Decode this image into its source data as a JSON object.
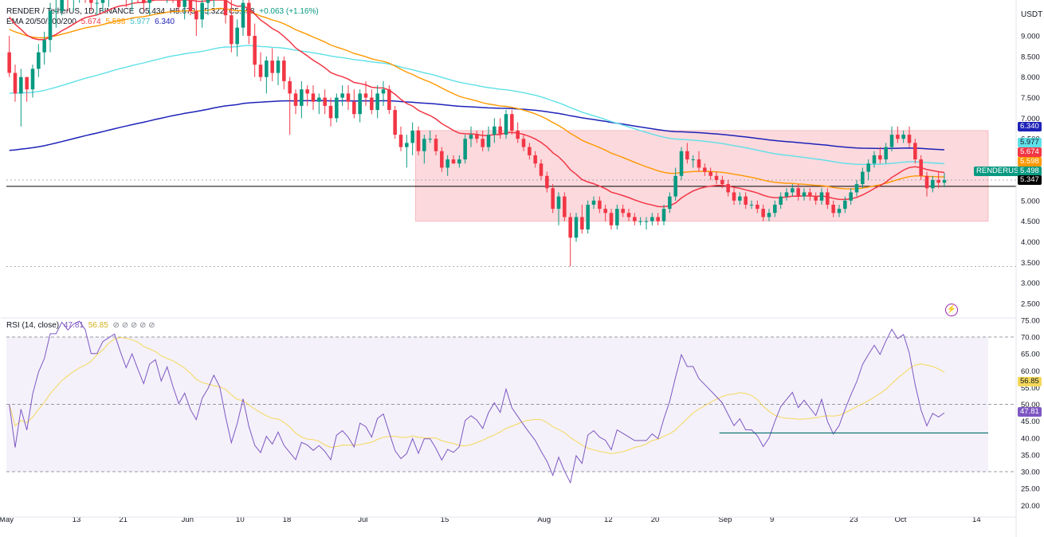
{
  "header": {
    "symbol": "RENDER / TetherUS, 1D, BINANCE",
    "open": "O5.434",
    "high": "H5.673",
    "low": "L5.322",
    "close": "C5.498",
    "change": "+0.063 (+1.16%)",
    "ema_label": "EMA 20/50/100/200",
    "ema_values": [
      "5.674",
      "5.598",
      "5.977",
      "6.340"
    ],
    "rsi_label": "RSI (14, close)",
    "rsi_values": [
      "47.81",
      "56.85"
    ],
    "currency": "USDT",
    "symbol_tag": "RENDERUSDT"
  },
  "colors": {
    "up": "#089981",
    "down": "#f23645",
    "ema20": "#f23645",
    "ema50": "#ff9800",
    "ema100": "#5fe0e8",
    "ema200": "#1e22b8",
    "rsi": "#7e57c2",
    "rsi_ma": "#f5d85a",
    "zone": "#f9c6cc",
    "support": "#000000",
    "rsi_support": "#006d6d"
  },
  "chart_data": [
    {
      "type": "candlestick",
      "title": "RENDER / TetherUS, 1D, BINANCE",
      "ylabel": "USDT",
      "ylim": [
        2.25,
        10.0
      ],
      "y_ticks": [
        2.5,
        3.0,
        3.5,
        4.0,
        4.5,
        5.0,
        5.5,
        6.0,
        6.5,
        7.0,
        7.5,
        8.0,
        8.5,
        9.0
      ],
      "x_ticks": [
        "May",
        "13",
        "21",
        "Jun",
        "10",
        "18",
        "Jul",
        "15",
        "Aug",
        "12",
        "20",
        "Sep",
        "9",
        "23",
        "Oct",
        "14"
      ],
      "x_tick_days": [
        0,
        12,
        20,
        31,
        40,
        48,
        61,
        75,
        92,
        103,
        111,
        123,
        131,
        145,
        153,
        166
      ],
      "start_date": "2024-05-01",
      "candles": [
        [
          8.6,
          9.0,
          8.0,
          8.1
        ],
        [
          8.1,
          8.3,
          7.4,
          7.6
        ],
        [
          7.6,
          8.2,
          6.8,
          8.0
        ],
        [
          8.0,
          8.0,
          7.4,
          7.7
        ],
        [
          7.7,
          8.3,
          7.5,
          8.2
        ],
        [
          8.2,
          8.8,
          8.0,
          8.6
        ],
        [
          8.6,
          9.1,
          8.3,
          8.9
        ],
        [
          8.9,
          9.8,
          8.6,
          9.6
        ],
        [
          9.6,
          10.0,
          9.2,
          9.6
        ],
        [
          9.6,
          10.0,
          9.5,
          10.0
        ],
        [
          10.0,
          10.2,
          9.6,
          9.9
        ],
        [
          9.9,
          10.3,
          9.6,
          10.1
        ],
        [
          10.1,
          10.4,
          9.8,
          10.2
        ],
        [
          10.2,
          10.4,
          9.8,
          10.1
        ],
        [
          10.1,
          10.5,
          9.6,
          9.8
        ],
        [
          9.8,
          10.2,
          9.5,
          9.8
        ],
        [
          9.8,
          10.3,
          9.6,
          10.1
        ],
        [
          10.1,
          10.4,
          9.7,
          10.2
        ],
        [
          10.2,
          10.5,
          9.9,
          10.3
        ],
        [
          10.3,
          10.6,
          9.9,
          10.1
        ],
        [
          10.1,
          10.4,
          9.7,
          9.9
        ],
        [
          9.9,
          10.3,
          9.6,
          10.2
        ],
        [
          10.2,
          10.4,
          9.8,
          10.0
        ],
        [
          10.0,
          10.3,
          9.6,
          9.8
        ],
        [
          9.8,
          10.4,
          9.5,
          10.2
        ],
        [
          10.2,
          10.6,
          9.9,
          10.3
        ],
        [
          10.3,
          10.6,
          9.9,
          10.0
        ],
        [
          10.0,
          10.5,
          9.8,
          10.3
        ],
        [
          10.3,
          10.6,
          9.8,
          10.0
        ],
        [
          10.0,
          10.4,
          9.6,
          9.7
        ],
        [
          9.7,
          10.2,
          9.4,
          9.9
        ],
        [
          9.9,
          10.1,
          9.5,
          9.6
        ],
        [
          9.6,
          10.1,
          9.0,
          9.4
        ],
        [
          9.4,
          10.0,
          9.2,
          9.8
        ],
        [
          9.8,
          10.3,
          9.5,
          10.0
        ],
        [
          10.0,
          10.5,
          9.7,
          10.3
        ],
        [
          10.3,
          10.6,
          9.9,
          10.1
        ],
        [
          10.1,
          10.4,
          9.3,
          9.5
        ],
        [
          9.5,
          9.9,
          8.6,
          8.8
        ],
        [
          8.8,
          9.4,
          8.5,
          9.2
        ],
        [
          9.2,
          10.0,
          9.0,
          9.8
        ],
        [
          9.8,
          10.2,
          8.8,
          9.0
        ],
        [
          9.0,
          9.3,
          8.0,
          8.3
        ],
        [
          8.3,
          8.6,
          7.9,
          8.0
        ],
        [
          8.0,
          8.5,
          7.6,
          8.4
        ],
        [
          8.4,
          8.7,
          7.9,
          8.1
        ],
        [
          8.1,
          8.5,
          7.8,
          8.4
        ],
        [
          8.4,
          8.5,
          7.7,
          7.9
        ],
        [
          7.9,
          8.0,
          6.6,
          7.6
        ],
        [
          7.6,
          7.7,
          7.1,
          7.3
        ],
        [
          7.3,
          7.9,
          7.0,
          7.7
        ],
        [
          7.7,
          7.8,
          7.3,
          7.6
        ],
        [
          7.6,
          7.8,
          7.2,
          7.4
        ],
        [
          7.4,
          7.6,
          7.1,
          7.5
        ],
        [
          7.5,
          7.7,
          7.1,
          7.3
        ],
        [
          7.3,
          7.5,
          6.8,
          7.0
        ],
        [
          7.0,
          7.6,
          6.9,
          7.5
        ],
        [
          7.5,
          7.8,
          7.3,
          7.6
        ],
        [
          7.6,
          7.8,
          7.2,
          7.4
        ],
        [
          7.4,
          7.7,
          7.0,
          7.1
        ],
        [
          7.1,
          7.7,
          6.9,
          7.6
        ],
        [
          7.6,
          7.9,
          7.3,
          7.5
        ],
        [
          7.5,
          7.7,
          7.1,
          7.2
        ],
        [
          7.2,
          7.8,
          7.0,
          7.6
        ],
        [
          7.6,
          7.9,
          7.3,
          7.7
        ],
        [
          7.7,
          7.8,
          7.1,
          7.2
        ],
        [
          7.2,
          7.3,
          6.5,
          6.6
        ],
        [
          6.6,
          6.8,
          6.2,
          6.3
        ],
        [
          6.3,
          6.6,
          5.8,
          6.4
        ],
        [
          6.4,
          6.9,
          6.1,
          6.7
        ],
        [
          6.7,
          6.8,
          6.1,
          6.2
        ],
        [
          6.2,
          6.6,
          5.9,
          6.5
        ],
        [
          6.5,
          6.7,
          6.4,
          6.5
        ],
        [
          6.5,
          6.6,
          6.1,
          6.2
        ],
        [
          6.2,
          6.3,
          5.7,
          5.8
        ],
        [
          5.8,
          6.1,
          5.6,
          6.0
        ],
        [
          6.0,
          6.1,
          5.9,
          5.9
        ],
        [
          5.9,
          6.1,
          5.8,
          6.0
        ],
        [
          6.0,
          6.6,
          5.9,
          6.5
        ],
        [
          6.5,
          6.8,
          6.3,
          6.6
        ],
        [
          6.6,
          6.7,
          6.4,
          6.5
        ],
        [
          6.5,
          6.7,
          6.2,
          6.3
        ],
        [
          6.3,
          6.8,
          6.2,
          6.6
        ],
        [
          6.6,
          7.0,
          6.4,
          6.8
        ],
        [
          6.8,
          7.0,
          6.5,
          6.6
        ],
        [
          6.6,
          7.2,
          6.5,
          7.1
        ],
        [
          7.1,
          7.2,
          6.6,
          6.7
        ],
        [
          6.7,
          6.9,
          6.4,
          6.5
        ],
        [
          6.5,
          6.6,
          6.2,
          6.3
        ],
        [
          6.3,
          6.4,
          6.0,
          6.1
        ],
        [
          6.1,
          6.2,
          5.8,
          5.9
        ],
        [
          5.9,
          6.0,
          5.5,
          5.6
        ],
        [
          5.6,
          5.7,
          5.2,
          5.3
        ],
        [
          5.3,
          5.4,
          4.7,
          4.8
        ],
        [
          4.8,
          5.2,
          4.4,
          5.1
        ],
        [
          5.1,
          5.2,
          4.5,
          4.6
        ],
        [
          4.6,
          4.7,
          3.4,
          4.1
        ],
        [
          4.1,
          4.7,
          4.0,
          4.6
        ],
        [
          4.6,
          4.9,
          4.2,
          4.3
        ],
        [
          4.3,
          5.0,
          4.2,
          4.9
        ],
        [
          4.9,
          5.1,
          4.8,
          5.0
        ],
        [
          5.0,
          5.1,
          4.7,
          4.8
        ],
        [
          4.8,
          4.9,
          4.5,
          4.7
        ],
        [
          4.7,
          4.8,
          4.3,
          4.4
        ],
        [
          4.4,
          4.9,
          4.3,
          4.8
        ],
        [
          4.8,
          4.9,
          4.6,
          4.7
        ],
        [
          4.7,
          4.8,
          4.5,
          4.6
        ],
        [
          4.6,
          4.7,
          4.4,
          4.5
        ],
        [
          4.5,
          4.6,
          4.4,
          4.5
        ],
        [
          4.5,
          4.6,
          4.3,
          4.5
        ],
        [
          4.5,
          4.7,
          4.4,
          4.6
        ],
        [
          4.6,
          4.7,
          4.4,
          4.5
        ],
        [
          4.5,
          4.9,
          4.4,
          4.8
        ],
        [
          4.8,
          5.2,
          4.7,
          5.1
        ],
        [
          5.1,
          5.8,
          5.0,
          5.6
        ],
        [
          5.6,
          6.3,
          5.5,
          6.2
        ],
        [
          6.2,
          6.4,
          5.9,
          6.0
        ],
        [
          6.0,
          6.1,
          5.8,
          6.0
        ],
        [
          6.0,
          6.2,
          5.7,
          5.8
        ],
        [
          5.8,
          5.9,
          5.6,
          5.7
        ],
        [
          5.7,
          5.8,
          5.5,
          5.6
        ],
        [
          5.6,
          5.7,
          5.4,
          5.5
        ],
        [
          5.5,
          5.6,
          5.3,
          5.4
        ],
        [
          5.4,
          5.5,
          5.1,
          5.2
        ],
        [
          5.2,
          5.3,
          4.9,
          5.0
        ],
        [
          5.0,
          5.2,
          4.9,
          5.1
        ],
        [
          5.1,
          5.2,
          4.8,
          4.9
        ],
        [
          4.9,
          5.0,
          4.8,
          4.9
        ],
        [
          4.9,
          5.0,
          4.7,
          4.8
        ],
        [
          4.8,
          4.9,
          4.5,
          4.6
        ],
        [
          4.6,
          4.8,
          4.5,
          4.7
        ],
        [
          4.7,
          5.0,
          4.6,
          4.9
        ],
        [
          4.9,
          5.2,
          4.8,
          5.1
        ],
        [
          5.1,
          5.3,
          5.0,
          5.2
        ],
        [
          5.2,
          5.4,
          5.1,
          5.3
        ],
        [
          5.3,
          5.4,
          5.0,
          5.1
        ],
        [
          5.1,
          5.3,
          5.0,
          5.2
        ],
        [
          5.2,
          5.3,
          5.0,
          5.1
        ],
        [
          5.1,
          5.2,
          4.9,
          5.0
        ],
        [
          5.0,
          5.3,
          4.9,
          5.2
        ],
        [
          5.2,
          5.3,
          4.8,
          4.9
        ],
        [
          4.9,
          5.0,
          4.6,
          4.7
        ],
        [
          4.7,
          4.9,
          4.6,
          4.8
        ],
        [
          4.8,
          5.1,
          4.7,
          5.0
        ],
        [
          5.0,
          5.3,
          4.9,
          5.2
        ],
        [
          5.2,
          5.5,
          5.1,
          5.4
        ],
        [
          5.4,
          5.8,
          5.3,
          5.7
        ],
        [
          5.7,
          6.0,
          5.5,
          5.9
        ],
        [
          5.9,
          6.2,
          5.8,
          6.1
        ],
        [
          6.1,
          6.3,
          5.9,
          6.0
        ],
        [
          6.0,
          6.4,
          5.9,
          6.3
        ],
        [
          6.3,
          6.8,
          6.2,
          6.6
        ],
        [
          6.6,
          6.8,
          6.4,
          6.5
        ],
        [
          6.5,
          6.7,
          6.4,
          6.6
        ],
        [
          6.6,
          6.8,
          6.3,
          6.4
        ],
        [
          6.4,
          6.5,
          5.9,
          6.0
        ],
        [
          6.0,
          6.1,
          5.5,
          5.6
        ],
        [
          5.6,
          5.7,
          5.1,
          5.3
        ],
        [
          5.3,
          5.6,
          5.2,
          5.5
        ],
        [
          5.5,
          5.7,
          5.3,
          5.434
        ],
        [
          5.434,
          5.673,
          5.322,
          5.498
        ]
      ],
      "lines": [
        {
          "name": "EMA 20",
          "value": 5.674
        },
        {
          "name": "EMA 50",
          "value": 5.598
        },
        {
          "name": "EMA 100",
          "value": 5.977
        },
        {
          "name": "EMA 200",
          "value": 6.34
        }
      ],
      "zone": {
        "from_day": 70,
        "to_day": 168,
        "low": 4.5,
        "high": 6.7
      },
      "support_level": 5.347,
      "dashed_levels": [
        5.498,
        3.4
      ]
    },
    {
      "type": "line",
      "title": "RSI (14, close)",
      "ylim": [
        17,
        75
      ],
      "y_ticks": [
        20,
        25,
        30,
        35,
        40,
        45,
        50,
        55,
        60,
        65,
        70,
        75
      ],
      "bands": [
        30,
        50,
        70
      ],
      "support_level": 41.5,
      "series": [
        {
          "name": "RSI",
          "value": 47.81
        },
        {
          "name": "RSI MA",
          "value": 56.85
        }
      ]
    }
  ]
}
